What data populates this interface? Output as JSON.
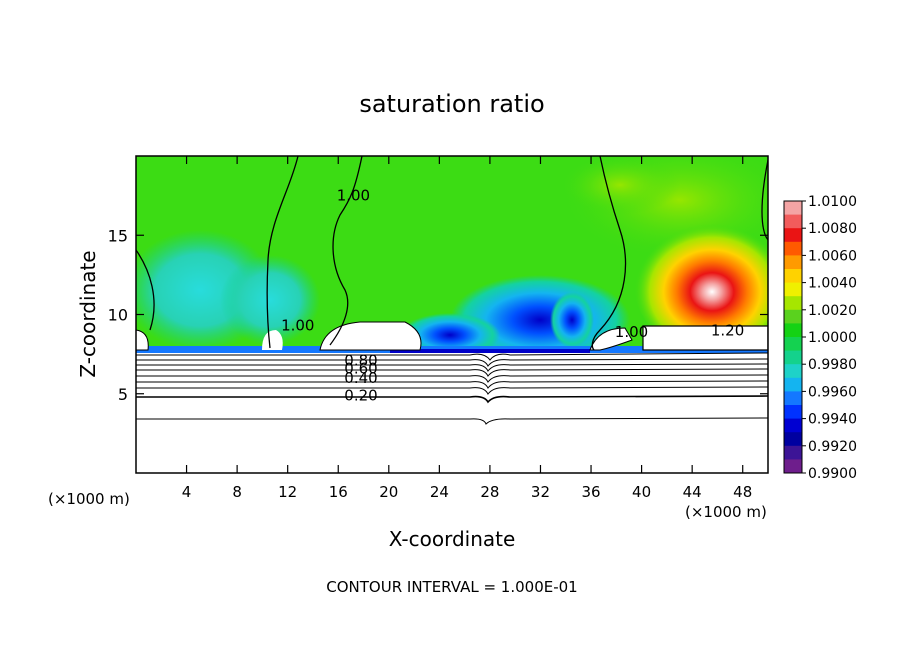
{
  "chart_data": {
    "type": "heatmap",
    "title": "saturation ratio",
    "xlabel": "X-coordinate",
    "ylabel": "Z-coordinate",
    "x_unit_left": "(×1000 m)",
    "x_unit_right": "(×1000 m)",
    "xlim": [
      0,
      50
    ],
    "ylim": [
      0,
      20
    ],
    "x_ticks": [
      "4",
      "8",
      "12",
      "16",
      "20",
      "24",
      "28",
      "32",
      "36",
      "40",
      "44",
      "48"
    ],
    "x_tick_values": [
      4,
      8,
      12,
      16,
      20,
      24,
      28,
      32,
      36,
      40,
      44,
      48
    ],
    "y_ticks": [
      "5",
      "10",
      "15"
    ],
    "y_tick_values": [
      5,
      10,
      15
    ],
    "colorbar": {
      "labels": [
        "1.0100",
        "1.0080",
        "1.0060",
        "1.0040",
        "1.0020",
        "1.0000",
        "0.9980",
        "0.9960",
        "0.9940",
        "0.9920",
        "0.9900"
      ],
      "values": [
        1.01,
        1.008,
        1.006,
        1.004,
        1.002,
        1.0,
        0.998,
        0.996,
        0.994,
        0.992,
        0.99
      ],
      "colors": [
        "#f4a4a4",
        "#f25c5c",
        "#ea1414",
        "#ff5a00",
        "#ff9a00",
        "#ffd200",
        "#f0f000",
        "#a6e600",
        "#5ad21e",
        "#14d214",
        "#14d250",
        "#14d28c",
        "#1ed2c8",
        "#14b4f0",
        "#1478ff",
        "#0032ff",
        "#0000d2",
        "#0000a0",
        "#3c1496",
        "#6e1e8c"
      ]
    },
    "contour_labels": [
      {
        "text": "1.00",
        "x": 17.2,
        "z": 17.5
      },
      {
        "text": "1.00",
        "x": 12.8,
        "z": 9.3
      },
      {
        "text": "1.00",
        "x": 39.2,
        "z": 8.9
      },
      {
        "text": "1.20",
        "x": 46.8,
        "z": 9.0
      },
      {
        "text": "0.80",
        "x": 17.8,
        "z": 7.1
      },
      {
        "text": "0.60",
        "x": 17.8,
        "z": 6.6
      },
      {
        "text": "0.40",
        "x": 17.8,
        "z": 6.0
      },
      {
        "text": "0.20",
        "x": 17.8,
        "z": 4.9
      }
    ],
    "footer": "CONTOUR INTERVAL = 1.000E-01"
  }
}
